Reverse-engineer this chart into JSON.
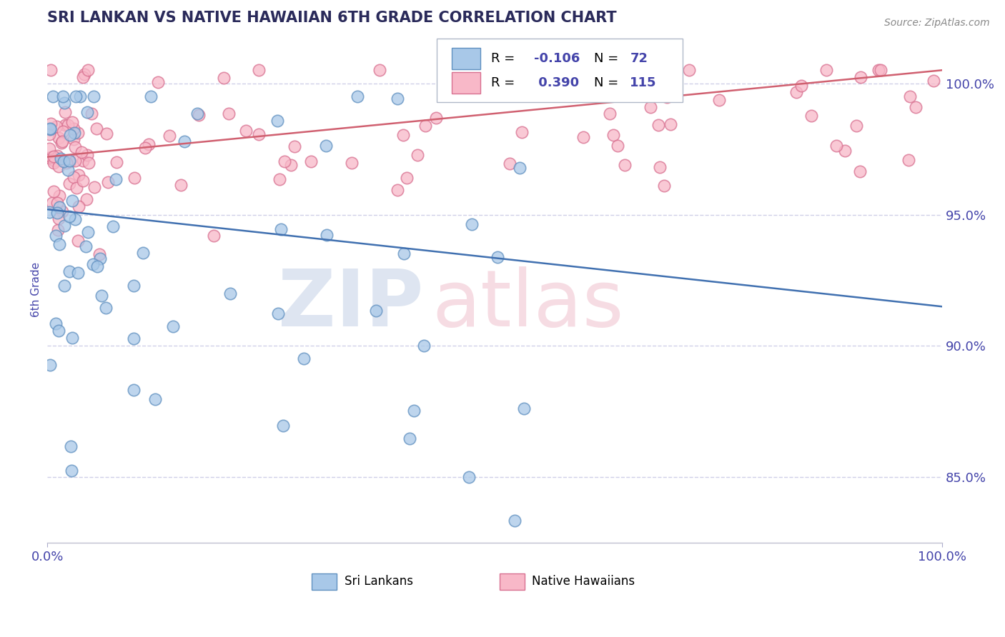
{
  "title": "SRI LANKAN VS NATIVE HAWAIIAN 6TH GRADE CORRELATION CHART",
  "source_text": "Source: ZipAtlas.com",
  "ylabel": "6th Grade",
  "xlim": [
    0.0,
    100.0
  ],
  "ylim": [
    82.5,
    101.8
  ],
  "yticks": [
    85.0,
    90.0,
    95.0,
    100.0
  ],
  "xticks": [
    0.0,
    100.0
  ],
  "xticklabels": [
    "0.0%",
    "100.0%"
  ],
  "yticklabels": [
    "85.0%",
    "90.0%",
    "95.0%",
    "100.0%"
  ],
  "sri_lankan_fill": "#a8c8e8",
  "sri_lankan_edge": "#6090c0",
  "native_hawaiian_fill": "#f8b8c8",
  "native_hawaiian_edge": "#d87090",
  "sri_lankan_line": "#4070b0",
  "native_hawaiian_line": "#d06070",
  "title_color": "#2a2a5a",
  "axis_color": "#4444aa",
  "grid_color": "#d0d0e8",
  "legend_r_sri": "-0.106",
  "legend_n_sri": "72",
  "legend_r_native": "0.390",
  "legend_n_native": "115",
  "blue_line_x0": 0,
  "blue_line_y0": 95.2,
  "blue_line_x1": 100,
  "blue_line_y1": 91.5,
  "pink_line_x0": 0,
  "pink_line_y0": 97.2,
  "pink_line_x1": 100,
  "pink_line_y1": 100.5
}
